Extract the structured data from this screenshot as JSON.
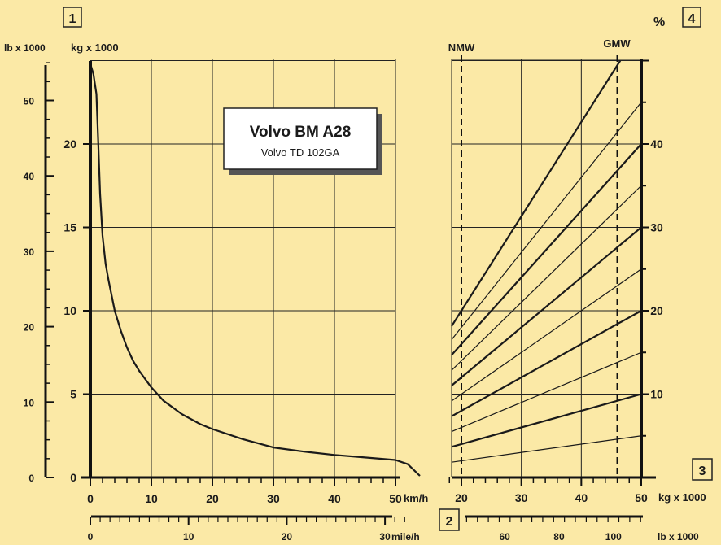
{
  "chart_data": [
    {
      "type": "line",
      "title": "Volvo BM A28",
      "subtitle": "Volvo TD 102GA",
      "marker": "1",
      "ylabel_primary": "kg x 1000",
      "ylabel_secondary": "lb x 1000",
      "xlabel_primary": "km/h",
      "xlabel_secondary": "mile/h",
      "secondary_x_marker": "2",
      "xlim": [
        0,
        50
      ],
      "ylim": [
        0,
        25
      ],
      "y_ticks": [
        "0",
        "5",
        "10",
        "15",
        "20"
      ],
      "x_ticks": [
        "0",
        "10",
        "20",
        "30",
        "40",
        "50"
      ],
      "y_secondary_ticks": [
        "0",
        "10",
        "20",
        "30",
        "40",
        "50"
      ],
      "x_secondary_ticks": [
        "0",
        "10",
        "20",
        "30"
      ],
      "grid": true,
      "series": [
        {
          "x": [
            0,
            0.5,
            1,
            1.3,
            1.6,
            2,
            2.5,
            3,
            4,
            5,
            6,
            7,
            8,
            9,
            10,
            12,
            15,
            18,
            20,
            25,
            30,
            35,
            40,
            45,
            50,
            52,
            54
          ],
          "y": [
            24.8,
            24.2,
            23.0,
            20.0,
            17.0,
            14.5,
            12.8,
            11.8,
            10.0,
            8.8,
            7.8,
            7.0,
            6.4,
            5.9,
            5.4,
            4.6,
            3.8,
            3.2,
            2.9,
            2.3,
            1.8,
            1.55,
            1.35,
            1.2,
            1.05,
            0.8,
            0.1
          ]
        }
      ]
    },
    {
      "type": "line",
      "ylabel": "%",
      "marker_y": "4",
      "xlabel_primary": "kg x 1000",
      "xlabel_secondary": "lb x 1000",
      "marker_x": "3",
      "secondary_x_marker": "2",
      "xlim": [
        20,
        50
      ],
      "ylim": [
        0,
        50
      ],
      "x_ticks": [
        "20",
        "30",
        "40",
        "50"
      ],
      "x_secondary_ticks": [
        "60",
        "80",
        "100"
      ],
      "y_ticks": [
        "10",
        "20",
        "30",
        "40"
      ],
      "grid": true,
      "annotations": [
        {
          "label": "NMW",
          "x": 20
        },
        {
          "label": "GMW",
          "x": 46
        }
      ],
      "series": [
        {
          "values_at_x": [
            20,
            50
          ],
          "y": [
            2,
            5
          ]
        },
        {
          "values_at_x": [
            20,
            50
          ],
          "y": [
            4,
            10
          ]
        },
        {
          "values_at_x": [
            20,
            50
          ],
          "y": [
            6,
            15
          ]
        },
        {
          "values_at_x": [
            20,
            50
          ],
          "y": [
            8,
            20
          ]
        },
        {
          "values_at_x": [
            20,
            50
          ],
          "y": [
            10,
            25
          ]
        },
        {
          "values_at_x": [
            20,
            50
          ],
          "y": [
            12,
            30
          ]
        },
        {
          "values_at_x": [
            20,
            50
          ],
          "y": [
            14,
            35
          ]
        },
        {
          "values_at_x": [
            20,
            50
          ],
          "y": [
            16,
            40
          ]
        },
        {
          "values_at_x": [
            20,
            50
          ],
          "y": [
            18,
            45
          ]
        },
        {
          "values_at_x": [
            20,
            46.5
          ],
          "y": [
            20,
            50
          ]
        }
      ]
    }
  ]
}
